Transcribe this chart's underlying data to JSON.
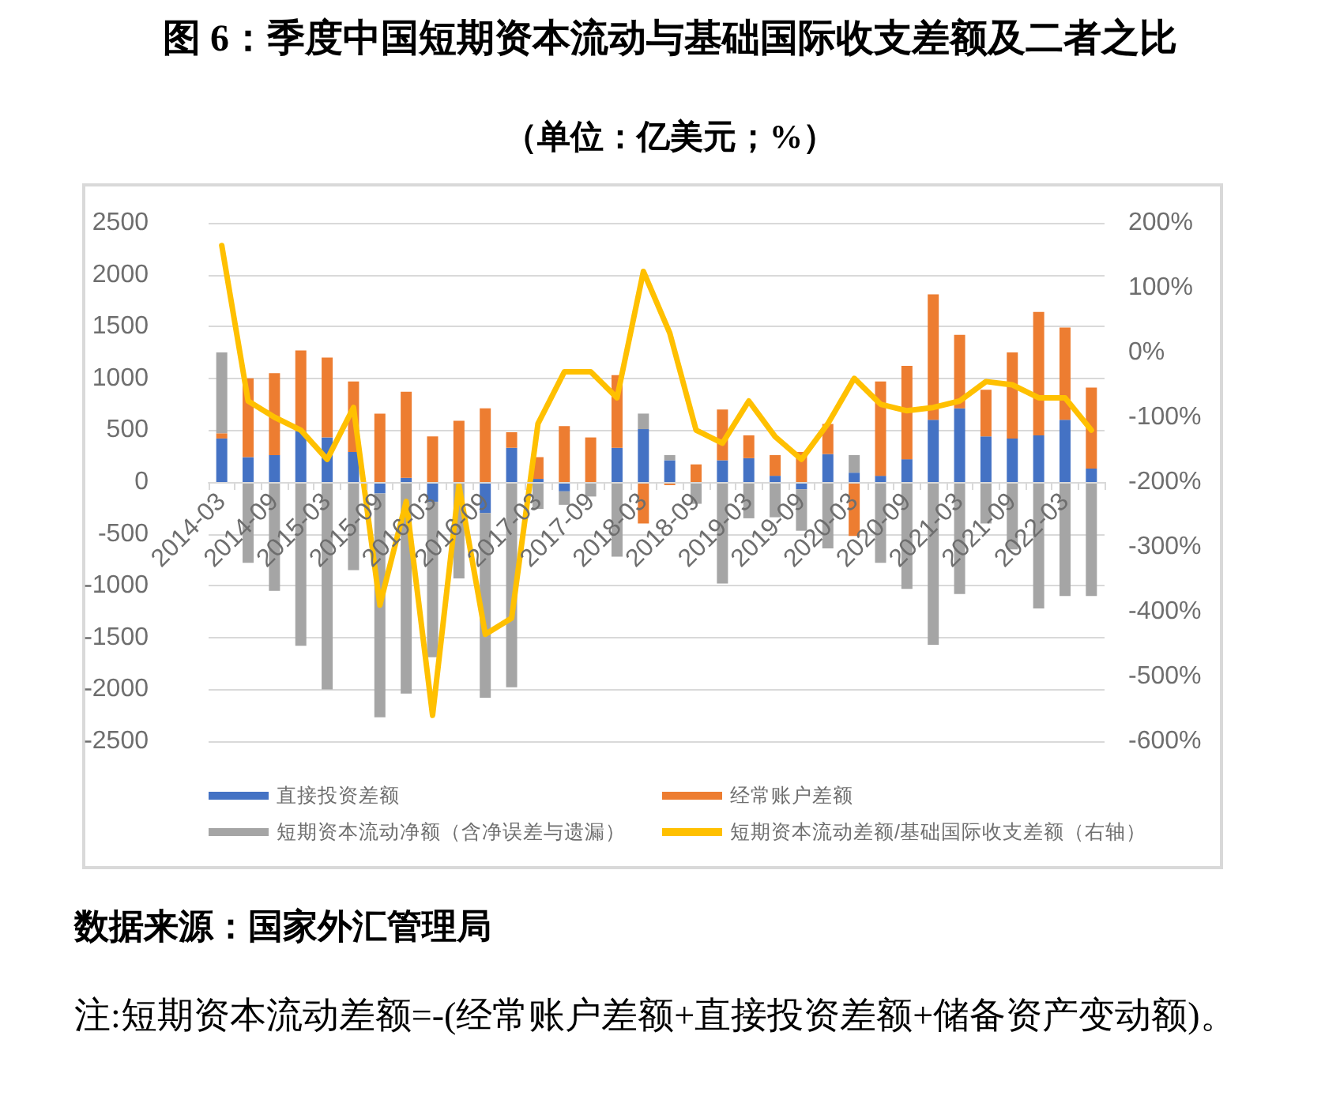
{
  "chart_data": {
    "type": "bar",
    "stacked": true,
    "title": "图 6：季度中国短期资本流动与基础国际收支差额及二者之比",
    "subtitle": "（单位：亿美元；%）",
    "categories": [
      "2014-03",
      null,
      "2014-09",
      null,
      "2015-03",
      null,
      "2015-09",
      null,
      "2016-03",
      null,
      "2016-09",
      null,
      "2017-03",
      null,
      "2017-09",
      null,
      "2018-03",
      null,
      "2018-09",
      null,
      "2019-03",
      null,
      "2019-09",
      null,
      "2020-03",
      null,
      "2020-09",
      null,
      "2021-03",
      null,
      "2021-09",
      null,
      "2022-03",
      null
    ],
    "series": [
      {
        "name": "直接投资差额",
        "color": "#4472c4",
        "values": [
          420,
          240,
          260,
          490,
          430,
          290,
          -110,
          40,
          -190,
          0,
          -300,
          330,
          30,
          -90,
          0,
          330,
          510,
          210,
          0,
          210,
          230,
          60,
          -70,
          270,
          90,
          60,
          220,
          600,
          710,
          440,
          420,
          450,
          600,
          130
        ]
      },
      {
        "name": "经常账户差额",
        "color": "#ed7d31",
        "values": [
          50,
          760,
          790,
          780,
          770,
          680,
          660,
          830,
          440,
          590,
          710,
          150,
          210,
          540,
          430,
          700,
          -400,
          -30,
          170,
          490,
          220,
          200,
          290,
          290,
          -520,
          910,
          900,
          1210,
          710,
          450,
          830,
          1190,
          890,
          780
        ]
      },
      {
        "name": "短期资本流动净额（含净误差与遗漏）",
        "color": "#a5a5a5",
        "values": [
          780,
          -780,
          -1050,
          -1580,
          -2000,
          -850,
          -2160,
          -2040,
          -1500,
          -930,
          -1780,
          -1980,
          -260,
          -130,
          -140,
          -720,
          150,
          50,
          -210,
          -980,
          -350,
          -340,
          -400,
          -640,
          170,
          -780,
          -1030,
          -1570,
          -1080,
          -400,
          -650,
          -1220,
          -1100,
          -1100
        ]
      },
      {
        "name": "短期资本流动差额/基础国际收支差额（右轴）",
        "type": "line",
        "axis": "y2",
        "color": "#ffc000",
        "values": [
          165,
          -75,
          -100,
          -120,
          -165,
          -85,
          -390,
          -230,
          -560,
          -205,
          -435,
          -410,
          -110,
          -30,
          -30,
          -70,
          125,
          30,
          -120,
          -140,
          -75,
          -130,
          -165,
          -110,
          -40,
          -80,
          -90,
          -85,
          -75,
          -45,
          -50,
          -70,
          -70,
          -120
        ]
      }
    ],
    "ylim": [
      -2500,
      2500
    ],
    "yticks": [
      -2500,
      -2000,
      -1500,
      -1000,
      -500,
      0,
      500,
      1000,
      1500,
      2000,
      2500
    ],
    "y2lim": [
      -600,
      200
    ],
    "y2ticks": [
      {
        "value": -600,
        "label": "-600%"
      },
      {
        "value": -500,
        "label": "-500%"
      },
      {
        "value": -400,
        "label": "-400%"
      },
      {
        "value": -300,
        "label": "-300%"
      },
      {
        "value": -200,
        "label": "-200%"
      },
      {
        "value": -100,
        "label": "-100%"
      },
      {
        "value": 0,
        "label": "0%"
      },
      {
        "value": 100,
        "label": "100%"
      },
      {
        "value": 200,
        "label": "200%"
      }
    ],
    "grid": "y",
    "legend": "bottom",
    "marker": "none",
    "line_style": "solid",
    "annotations": [
      "数据来源：国家外汇管理局",
      "注:短期资本流动差额=-(经常账户差额+直接投资差额+储备资产变动额)。"
    ]
  }
}
